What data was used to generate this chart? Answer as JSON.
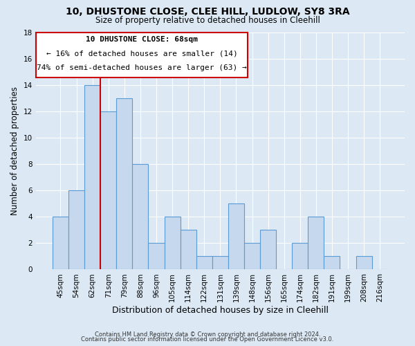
{
  "title": "10, DHUSTONE CLOSE, CLEE HILL, LUDLOW, SY8 3RA",
  "subtitle": "Size of property relative to detached houses in Cleehill",
  "xlabel": "Distribution of detached houses by size in Cleehill",
  "ylabel": "Number of detached properties",
  "footer_line1": "Contains HM Land Registry data © Crown copyright and database right 2024.",
  "footer_line2": "Contains public sector information licensed under the Open Government Licence v3.0.",
  "annotation_title": "10 DHUSTONE CLOSE: 68sqm",
  "annotation_line1": "← 16% of detached houses are smaller (14)",
  "annotation_line2": "74% of semi-detached houses are larger (63) →",
  "bar_color": "#c5d8ed",
  "bar_edge_color": "#5b9bd5",
  "ref_line_color": "#cc0000",
  "annotation_box_edge": "#cc0000",
  "bg_color": "#dce9f5",
  "plot_bg_color": "#dce9f5",
  "categories": [
    "45sqm",
    "54sqm",
    "62sqm",
    "71sqm",
    "79sqm",
    "88sqm",
    "96sqm",
    "105sqm",
    "114sqm",
    "122sqm",
    "131sqm",
    "139sqm",
    "148sqm",
    "156sqm",
    "165sqm",
    "174sqm",
    "182sqm",
    "191sqm",
    "199sqm",
    "208sqm",
    "216sqm"
  ],
  "values": [
    4,
    6,
    14,
    12,
    13,
    8,
    2,
    4,
    3,
    1,
    1,
    5,
    2,
    3,
    0,
    2,
    4,
    1,
    0,
    1,
    0
  ],
  "ref_line_x": 2.5,
  "ylim": [
    0,
    18
  ],
  "yticks": [
    0,
    2,
    4,
    6,
    8,
    10,
    12,
    14,
    16,
    18
  ]
}
